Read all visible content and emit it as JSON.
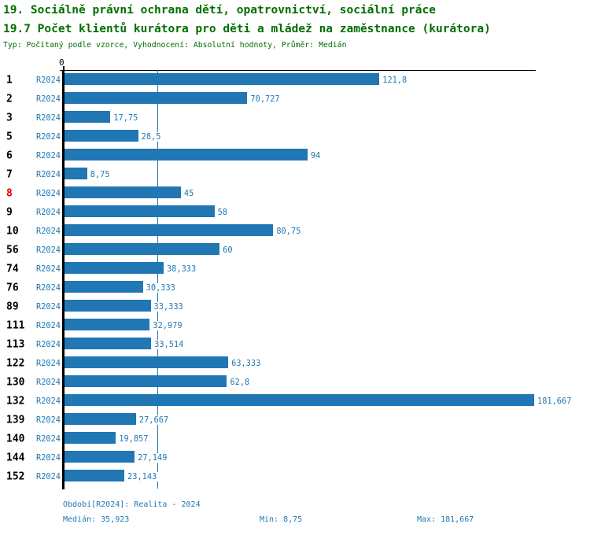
{
  "header": {
    "title_line1": "19. Sociálně právní ochrana dětí, opatrovnictví, sociální práce",
    "title_line2": "19.7 Počet klientů kurátora pro děti a mládež na zaměstnance (kurátora)",
    "subtitle": "Typ: Počítaný podle vzorce, Vyhodnocení: Absolutní hodnoty, Průměr: Medián"
  },
  "chart_data": {
    "type": "bar",
    "orientation": "horizontal",
    "series_label": "R2024",
    "axis": {
      "zero_label": "0",
      "xmin": 0,
      "xmax": 181.667,
      "median_line_value": 35.923,
      "grid": "single vertical median line"
    },
    "rows": [
      {
        "id": "1",
        "value": 121.8,
        "label": "121,8",
        "highlight": false
      },
      {
        "id": "2",
        "value": 70.727,
        "label": "70,727",
        "highlight": false
      },
      {
        "id": "3",
        "value": 17.75,
        "label": "17,75",
        "highlight": false
      },
      {
        "id": "5",
        "value": 28.5,
        "label": "28,5",
        "highlight": false
      },
      {
        "id": "6",
        "value": 94,
        "label": "94",
        "highlight": false
      },
      {
        "id": "7",
        "value": 8.75,
        "label": "8,75",
        "highlight": false
      },
      {
        "id": "8",
        "value": 45,
        "label": "45",
        "highlight": true
      },
      {
        "id": "9",
        "value": 58,
        "label": "58",
        "highlight": false
      },
      {
        "id": "10",
        "value": 80.75,
        "label": "80,75",
        "highlight": false
      },
      {
        "id": "56",
        "value": 60,
        "label": "60",
        "highlight": false
      },
      {
        "id": "74",
        "value": 38.333,
        "label": "38,333",
        "highlight": false
      },
      {
        "id": "76",
        "value": 30.333,
        "label": "30,333",
        "highlight": false
      },
      {
        "id": "89",
        "value": 33.333,
        "label": "33,333",
        "highlight": false
      },
      {
        "id": "111",
        "value": 32.979,
        "label": "32,979",
        "highlight": false
      },
      {
        "id": "113",
        "value": 33.514,
        "label": "33,514",
        "highlight": false
      },
      {
        "id": "122",
        "value": 63.333,
        "label": "63,333",
        "highlight": false
      },
      {
        "id": "130",
        "value": 62.8,
        "label": "62,8",
        "highlight": false
      },
      {
        "id": "132",
        "value": 181.667,
        "label": "181,667",
        "highlight": false
      },
      {
        "id": "139",
        "value": 27.667,
        "label": "27,667",
        "highlight": false
      },
      {
        "id": "140",
        "value": 19.857,
        "label": "19,857",
        "highlight": false
      },
      {
        "id": "144",
        "value": 27.149,
        "label": "27,149",
        "highlight": false
      },
      {
        "id": "152",
        "value": 23.143,
        "label": "23,143",
        "highlight": false
      }
    ]
  },
  "footer": {
    "period": "Období[R2024]: Realita - 2024",
    "median": "Medián: 35,923",
    "min": "Min: 8,75",
    "max": "Max: 181,667"
  },
  "colors": {
    "title_green": "#006e00",
    "bar_blue": "#2077b4",
    "text_blue": "#1f77b4",
    "highlight_red": "#e00000",
    "axis_black": "#000000"
  }
}
